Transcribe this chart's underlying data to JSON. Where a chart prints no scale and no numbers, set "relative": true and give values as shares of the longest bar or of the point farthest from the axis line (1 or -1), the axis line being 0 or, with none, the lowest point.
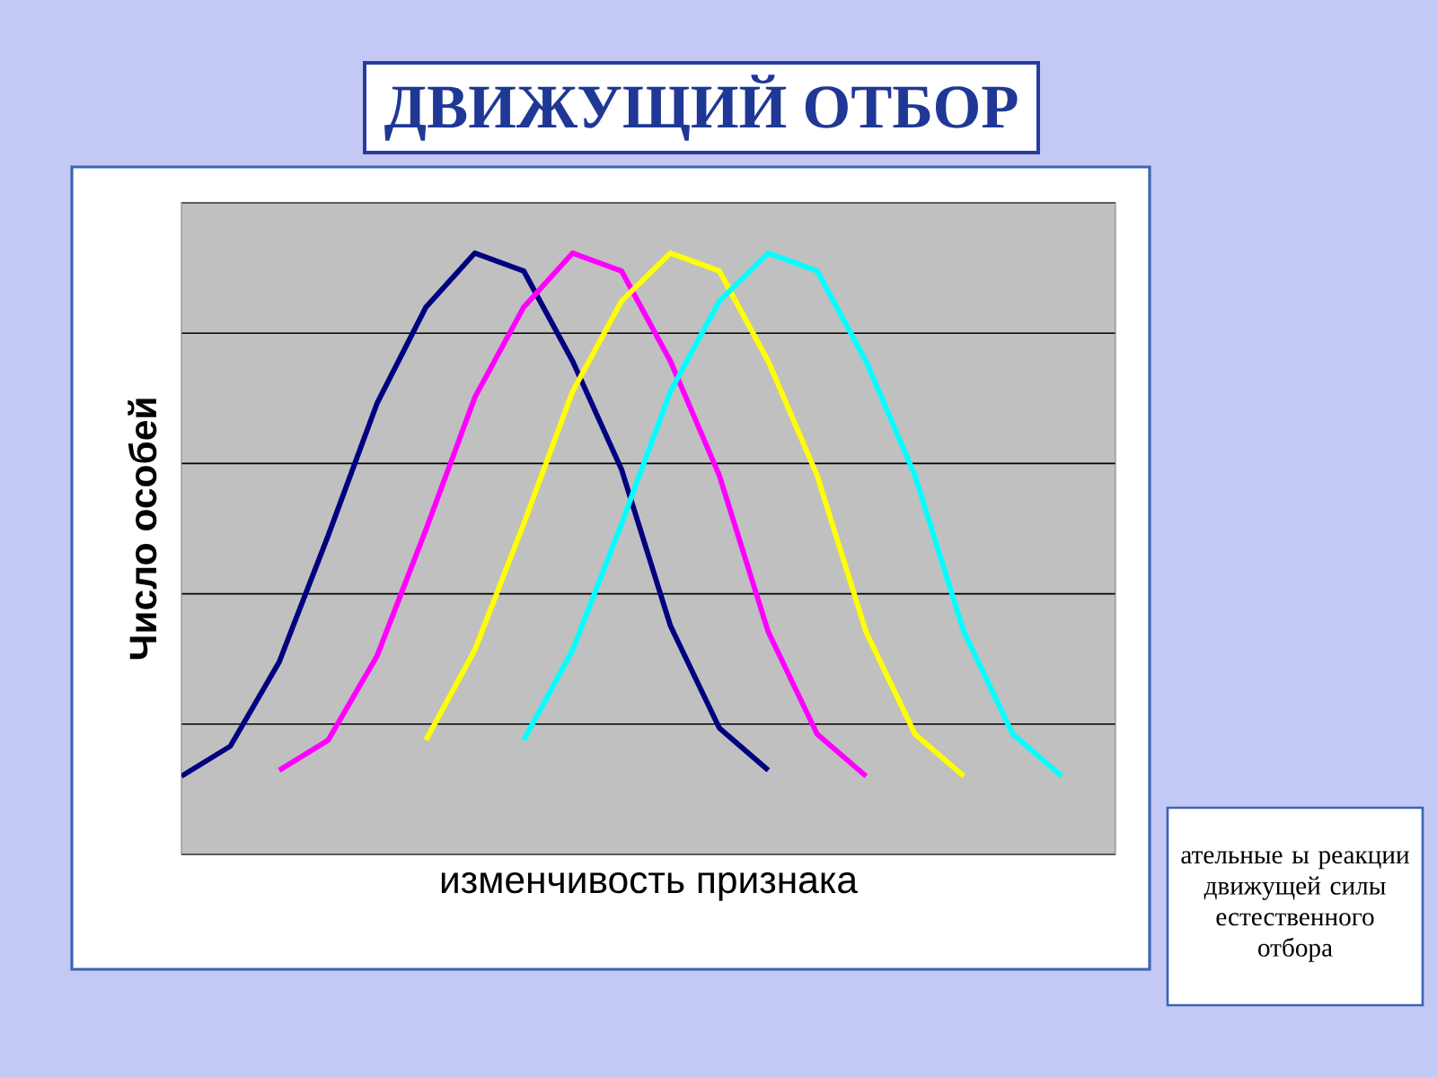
{
  "chart_data": {
    "type": "line",
    "title": "ДВИЖУЩИЙ ОТБОР",
    "xlabel": "изменчивость признака",
    "ylabel": "Число особей",
    "relative": true,
    "grid": "y",
    "marker": "none",
    "line_style": "solid",
    "annotations": [
      "ательные ы реакции движущей силы естественного отбора"
    ],
    "categories": [
      null,
      null,
      null,
      null,
      null,
      null,
      null,
      null,
      null,
      null,
      null,
      null,
      null,
      null,
      null,
      null,
      null,
      null,
      null,
      null
    ],
    "series": [
      {
        "color": "#000080",
        "values": [
          0.13,
          0.18,
          0.32,
          0.53,
          0.75,
          0.91,
          1.0,
          0.97,
          0.82,
          0.64,
          0.38,
          0.21,
          0.14,
          null,
          null,
          null,
          null,
          null,
          null,
          null
        ]
      },
      {
        "color": "#ff00ff",
        "values": [
          null,
          null,
          0.14,
          0.19,
          0.33,
          0.54,
          0.76,
          0.91,
          1.0,
          0.97,
          0.82,
          0.63,
          0.37,
          0.2,
          0.13,
          null,
          null,
          null,
          null,
          null
        ]
      },
      {
        "color": "#ffff00",
        "values": [
          null,
          null,
          null,
          null,
          null,
          0.19,
          0.34,
          0.55,
          0.77,
          0.92,
          1.0,
          0.97,
          0.82,
          0.63,
          0.37,
          0.2,
          0.13,
          null,
          null,
          null
        ]
      },
      {
        "color": "#00ffff",
        "values": [
          null,
          null,
          null,
          null,
          null,
          null,
          null,
          0.19,
          0.34,
          0.55,
          0.77,
          0.92,
          1.0,
          0.97,
          0.82,
          0.63,
          0.37,
          0.2,
          0.13,
          null
        ]
      }
    ]
  }
}
